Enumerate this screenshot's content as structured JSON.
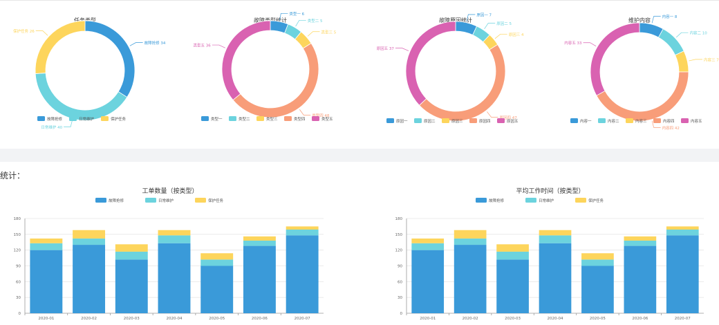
{
  "section": {
    "label": "统计："
  },
  "colors": {
    "blue": "#3a9ad9",
    "cyan": "#6cd3de",
    "yellow": "#fdd55c",
    "orange": "#f89d79",
    "magenta": "#d962b1"
  },
  "chart_data": [
    {
      "type": "pie",
      "donut": true,
      "title": "任务类型",
      "categories": [
        "故障抢修",
        "日常维护",
        "保护任务"
      ],
      "values": [
        34,
        40,
        26
      ],
      "slice_labels": [
        "故障抢修 34",
        "日常维护 40",
        "保护任务 26"
      ],
      "colors": [
        "blue",
        "cyan",
        "yellow"
      ],
      "legend_position": "bottom"
    },
    {
      "type": "pie",
      "donut": true,
      "title": "故障类型统计",
      "categories": [
        "类型一",
        "类型二",
        "类型三",
        "类型四",
        "类型五"
      ],
      "values": [
        6,
        5,
        5,
        48,
        36
      ],
      "slice_labels": [
        "类型一 6",
        "类型二 5",
        "类型三 5",
        "类型四 48",
        "类型五 36"
      ],
      "colors": [
        "blue",
        "cyan",
        "yellow",
        "orange",
        "magenta"
      ],
      "legend_position": "bottom"
    },
    {
      "type": "pie",
      "donut": true,
      "title": "故障原因统计",
      "categories": [
        "原因一",
        "原因二",
        "原因三",
        "原因四",
        "原因五"
      ],
      "values": [
        7,
        5,
        4,
        47,
        37
      ],
      "slice_labels": [
        "原因一 7",
        "原因二 5",
        "原因三 4",
        "原因四 47",
        "原因五 37"
      ],
      "colors": [
        "blue",
        "cyan",
        "yellow",
        "orange",
        "magenta"
      ],
      "legend_position": "bottom"
    },
    {
      "type": "pie",
      "donut": true,
      "title": "维护内容",
      "categories": [
        "内容一",
        "内容二",
        "内容三",
        "内容四",
        "内容五"
      ],
      "values": [
        8,
        10,
        7,
        42,
        33
      ],
      "slice_labels": [
        "内容一 8",
        "内容二 10",
        "内容三 7",
        "内容四 42",
        "内容五 33"
      ],
      "colors": [
        "blue",
        "cyan",
        "yellow",
        "orange",
        "magenta"
      ],
      "legend_position": "bottom"
    },
    {
      "type": "bar",
      "stacked": true,
      "title": "工单数量（按类型）",
      "categories": [
        "2020-01",
        "2020-02",
        "2020-03",
        "2020-04",
        "2020-05",
        "2020-06",
        "2020-07"
      ],
      "series": [
        {
          "name": "故障抢修",
          "values": [
            120,
            130,
            102,
            133,
            90,
            128,
            148
          ],
          "color": "blue"
        },
        {
          "name": "日常维护",
          "values": [
            13,
            12,
            15,
            15,
            12,
            10,
            11
          ],
          "color": "cyan"
        },
        {
          "name": "保护任务",
          "values": [
            9,
            16,
            14,
            10,
            12,
            8,
            6
          ],
          "color": "yellow"
        }
      ],
      "ylim": [
        0,
        180
      ],
      "yticks": [
        0,
        30,
        60,
        90,
        120,
        150,
        180
      ],
      "grid": true,
      "legend_position": "top"
    },
    {
      "type": "bar",
      "stacked": true,
      "title": "平均工作时间（按类型）",
      "categories": [
        "2020-01",
        "2020-02",
        "2020-03",
        "2020-04",
        "2020-05",
        "2020-06",
        "2020-07"
      ],
      "series": [
        {
          "name": "故障抢修",
          "values": [
            120,
            130,
            102,
            133,
            90,
            128,
            148
          ],
          "color": "blue"
        },
        {
          "name": "日常维护",
          "values": [
            13,
            12,
            15,
            15,
            12,
            10,
            11
          ],
          "color": "cyan"
        },
        {
          "name": "保护任务",
          "values": [
            9,
            16,
            14,
            10,
            12,
            8,
            6
          ],
          "color": "yellow"
        }
      ],
      "ylim": [
        0,
        180
      ],
      "yticks": [
        0,
        30,
        60,
        90,
        120,
        150,
        180
      ],
      "grid": true,
      "legend_position": "top"
    }
  ]
}
